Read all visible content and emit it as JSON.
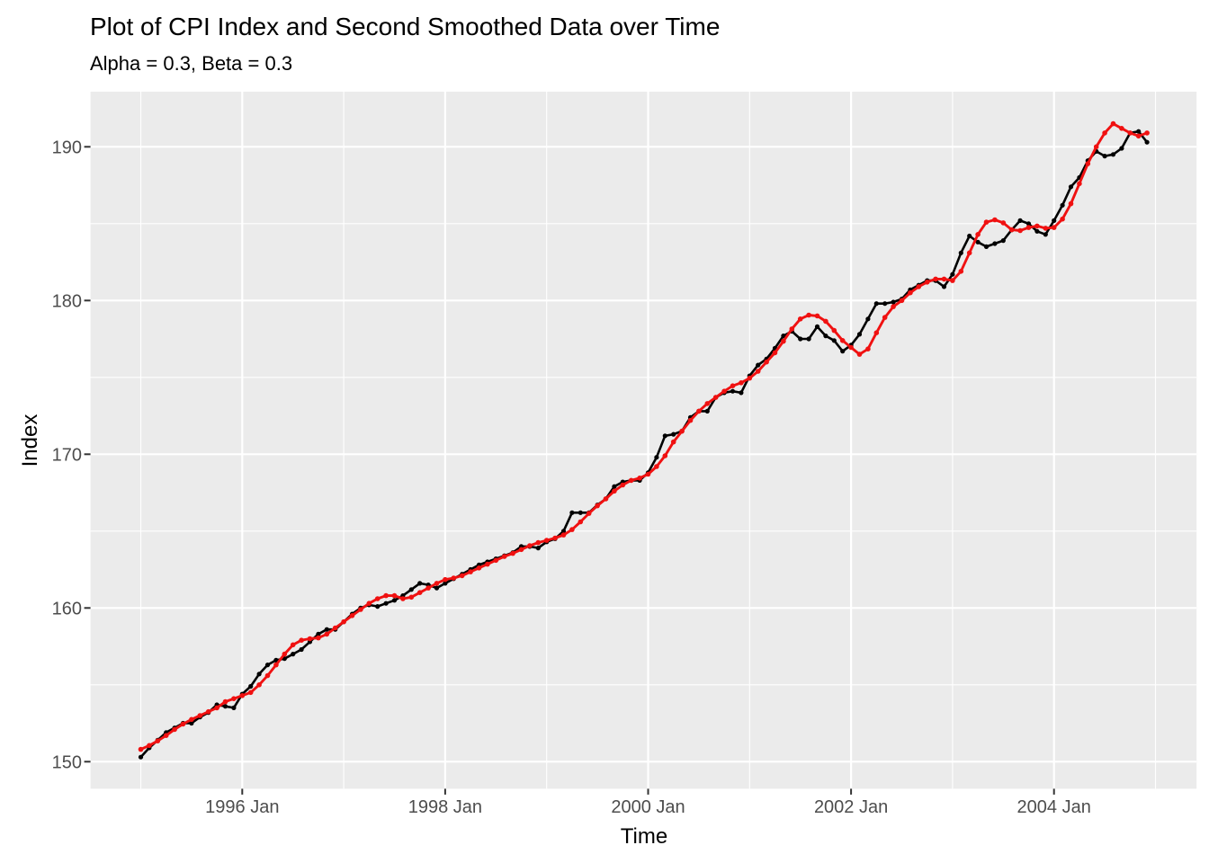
{
  "title": "Plot of CPI Index and Second Smoothed Data over Time",
  "subtitle": "Alpha = 0.3, Beta = 0.3",
  "chart_data": {
    "type": "line",
    "title": "Plot of CPI Index and Second Smoothed Data over Time",
    "subtitle": "Alpha = 0.3, Beta = 0.3",
    "alpha": 0.3,
    "beta": 0.3,
    "xlabel": "Time",
    "ylabel": "Index",
    "x_start": "1995 Jan",
    "x_end": "2004 Dec",
    "frequency": "monthly",
    "grid": true,
    "legend": "none",
    "x_tick_labels": [
      "1996 Jan",
      "1998 Jan",
      "2000 Jan",
      "2002 Jan",
      "2004 Jan"
    ],
    "x_tick_month_index": [
      12,
      36,
      60,
      84,
      108
    ],
    "x_minor_month_index": [
      0,
      24,
      48,
      72,
      96,
      120
    ],
    "y_tick_labels": [
      "150",
      "160",
      "170",
      "180",
      "190"
    ],
    "y_ticks": [
      150,
      160,
      170,
      180,
      190
    ],
    "y_minor": [
      155,
      165,
      175,
      185
    ],
    "ylim": [
      148.2,
      193.6
    ],
    "series": [
      {
        "name": "CPI Index",
        "color": "#000000",
        "values": [
          150.3,
          150.9,
          151.4,
          151.9,
          152.2,
          152.5,
          152.5,
          152.9,
          153.2,
          153.7,
          153.6,
          153.5,
          154.4,
          154.9,
          155.7,
          156.3,
          156.6,
          156.7,
          157.0,
          157.3,
          157.8,
          158.3,
          158.6,
          158.6,
          159.1,
          159.6,
          160.0,
          160.2,
          160.1,
          160.3,
          160.5,
          160.8,
          161.2,
          161.6,
          161.5,
          161.3,
          161.6,
          161.9,
          162.2,
          162.5,
          162.8,
          163.0,
          163.2,
          163.4,
          163.6,
          164.0,
          164.0,
          163.9,
          164.3,
          164.5,
          165.0,
          166.2,
          166.2,
          166.2,
          166.7,
          167.1,
          167.9,
          168.2,
          168.3,
          168.3,
          168.8,
          169.8,
          171.2,
          171.3,
          171.5,
          172.4,
          172.8,
          172.8,
          173.7,
          174.0,
          174.1,
          174.0,
          175.1,
          175.8,
          176.2,
          176.9,
          177.7,
          178.0,
          177.5,
          177.5,
          178.3,
          177.7,
          177.4,
          176.7,
          177.1,
          177.8,
          178.8,
          179.8,
          179.8,
          179.9,
          180.1,
          180.7,
          181.0,
          181.3,
          181.3,
          180.9,
          181.7,
          183.1,
          184.2,
          183.8,
          183.5,
          183.7,
          183.9,
          184.6,
          185.2,
          185.0,
          184.5,
          184.3,
          185.2,
          186.2,
          187.4,
          188.0,
          189.1,
          189.7,
          189.4,
          189.5,
          189.9,
          190.9,
          191.0,
          190.3
        ]
      },
      {
        "name": "Second Smoothed Data",
        "color": "#F01111",
        "values": [
          150.8,
          151.05,
          151.35,
          151.7,
          152.1,
          152.45,
          152.75,
          153.0,
          153.25,
          153.5,
          153.9,
          154.1,
          154.3,
          154.5,
          155.0,
          155.6,
          156.3,
          157.0,
          157.6,
          157.9,
          158.0,
          158.05,
          158.3,
          158.7,
          159.1,
          159.5,
          159.9,
          160.3,
          160.6,
          160.8,
          160.8,
          160.6,
          160.7,
          161.0,
          161.3,
          161.6,
          161.85,
          161.95,
          162.1,
          162.35,
          162.6,
          162.85,
          163.1,
          163.35,
          163.55,
          163.8,
          164.05,
          164.25,
          164.4,
          164.55,
          164.75,
          165.1,
          165.6,
          166.15,
          166.65,
          167.1,
          167.6,
          168.0,
          168.3,
          168.45,
          168.7,
          169.2,
          169.9,
          170.8,
          171.5,
          172.2,
          172.8,
          173.3,
          173.7,
          174.1,
          174.45,
          174.65,
          174.95,
          175.4,
          176.0,
          176.6,
          177.35,
          178.15,
          178.8,
          179.05,
          179.0,
          178.65,
          178.05,
          177.4,
          176.95,
          176.5,
          176.85,
          177.9,
          178.9,
          179.6,
          180.0,
          180.5,
          180.9,
          181.2,
          181.4,
          181.4,
          181.3,
          181.9,
          183.1,
          184.3,
          185.1,
          185.25,
          185.05,
          184.6,
          184.55,
          184.75,
          184.85,
          184.7,
          184.75,
          185.3,
          186.3,
          187.6,
          188.9,
          190.0,
          190.9,
          191.5,
          191.2,
          190.9,
          190.7,
          190.9
        ]
      }
    ]
  },
  "theme": {
    "panel_bg": "#EBEBEB",
    "grid_color": "#FFFFFF",
    "tick_text_color": "#4D4D4D",
    "tick_mark_color": "#333333",
    "text_color": "#000000"
  }
}
